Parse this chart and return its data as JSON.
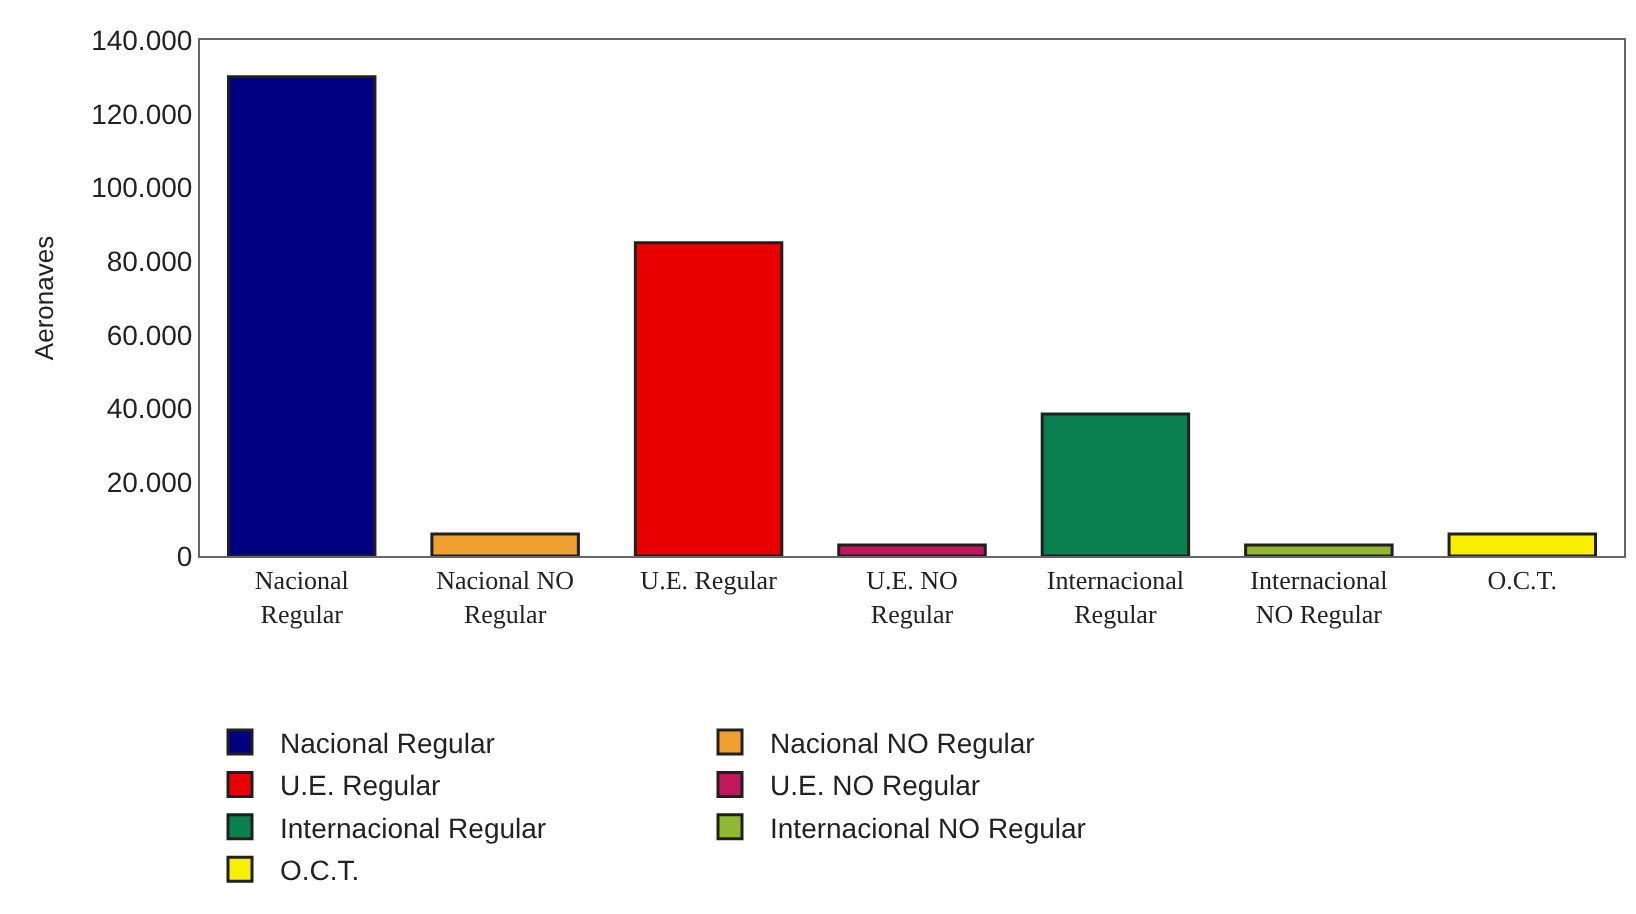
{
  "chart_data": {
    "type": "bar",
    "ylabel": "Aeronaves",
    "categories": [
      "Nacional\nRegular",
      "Nacional NO\nRegular",
      "U.E. Regular",
      "U.E. NO\nRegular",
      "Internacional\nRegular",
      "Internacional\nNO Regular",
      "O.C.T."
    ],
    "series": [
      {
        "name": "Nacional Regular",
        "color": "#000080",
        "values": [
          130000,
          null,
          null,
          null,
          null,
          null,
          null
        ]
      },
      {
        "name": "Nacional NO Regular",
        "color": "#f0a030",
        "values": [
          null,
          6000,
          null,
          null,
          null,
          null,
          null
        ]
      },
      {
        "name": "U.E. Regular",
        "color": "#e80000",
        "values": [
          null,
          null,
          85000,
          null,
          null,
          null,
          null
        ]
      },
      {
        "name": "U.E. NO Regular",
        "color": "#c0185a",
        "values": [
          null,
          null,
          null,
          3000,
          null,
          null,
          null
        ]
      },
      {
        "name": "Internacional Regular",
        "color": "#0a8050",
        "values": [
          null,
          null,
          null,
          null,
          38500,
          null,
          null
        ]
      },
      {
        "name": "Internacional NO Regular",
        "color": "#90b830",
        "values": [
          null,
          null,
          null,
          null,
          null,
          3000,
          null
        ]
      },
      {
        "name": "O.C.T.",
        "color": "#f8f000",
        "values": [
          null,
          null,
          null,
          null,
          null,
          null,
          6000
        ]
      }
    ],
    "ylim": [
      0,
      140000
    ],
    "yticks": [
      {
        "value": 0,
        "label": "0"
      },
      {
        "value": 20000,
        "label": "20.000"
      },
      {
        "value": 40000,
        "label": "40.000"
      },
      {
        "value": 60000,
        "label": "60.000"
      },
      {
        "value": 80000,
        "label": "80.000"
      },
      {
        "value": 100000,
        "label": "100.000"
      },
      {
        "value": 120000,
        "label": "120.000"
      },
      {
        "value": 140000,
        "label": "140.000"
      }
    ],
    "legend": "bottom"
  }
}
